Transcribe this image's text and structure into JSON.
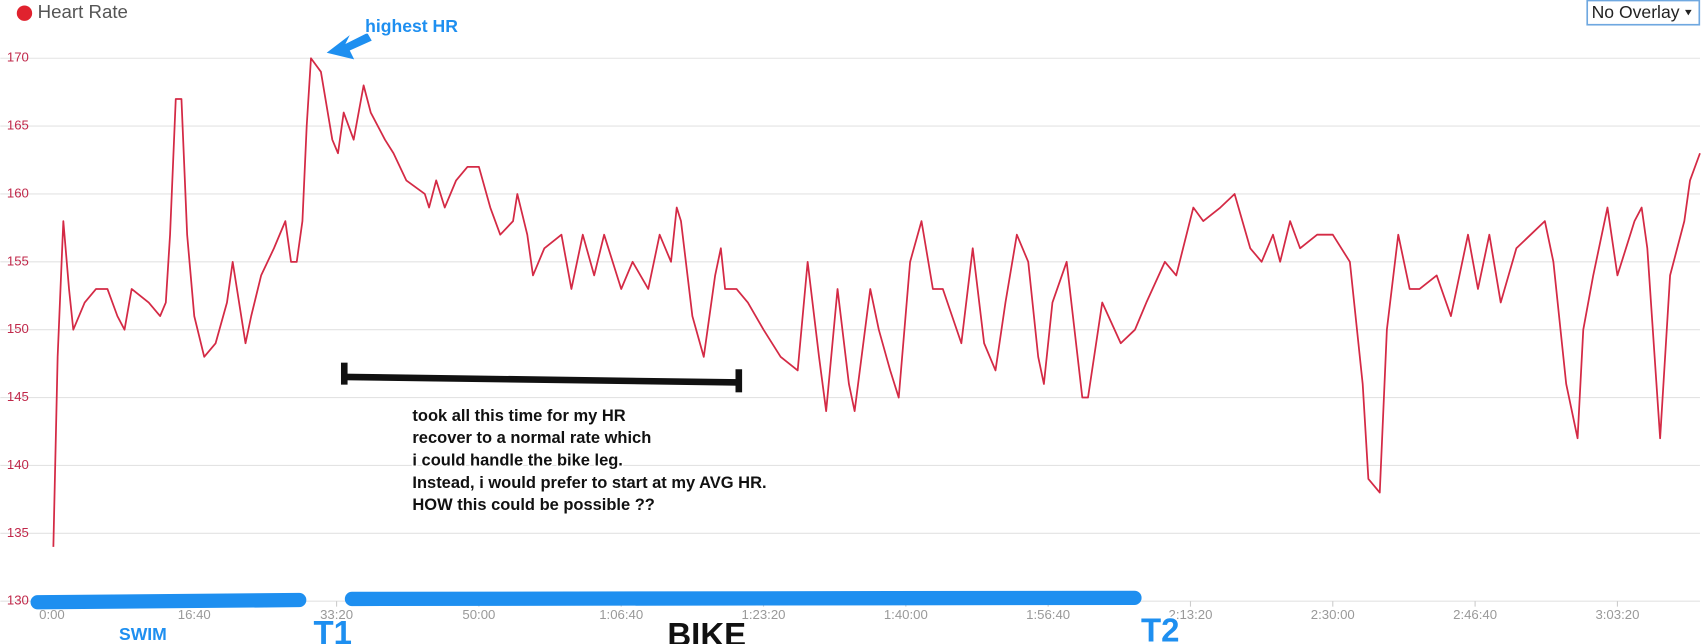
{
  "chart_data": {
    "type": "line",
    "legend": "top-left",
    "grid": true,
    "overlay_button": "No Overlay",
    "x": [
      10,
      40,
      80,
      120,
      150,
      230,
      310,
      390,
      460,
      510,
      560,
      680,
      760,
      800,
      830,
      870,
      910,
      950,
      1000,
      1070,
      1150,
      1230,
      1270,
      1360,
      1400,
      1470,
      1560,
      1640,
      1680,
      1720,
      1760,
      1790,
      1820,
      1890,
      1970,
      2010,
      2050,
      2120,
      2190,
      2240,
      2340,
      2400,
      2490,
      2620,
      2650,
      2700,
      2760,
      2840,
      2920,
      3000,
      3080,
      3150,
      3240,
      3270,
      3340,
      3380,
      3460,
      3580,
      3650,
      3730,
      3810,
      3880,
      4000,
      4080,
      4190,
      4270,
      4350,
      4390,
      4420,
      4500,
      4580,
      4660,
      4700,
      4730,
      4810,
      4890,
      5000,
      5120,
      5240,
      5310,
      5390,
      5440,
      5520,
      5600,
      5640,
      5750,
      5810,
      5890,
      5950,
      6030,
      6110,
      6190,
      6260,
      6390,
      6470,
      6550,
      6630,
      6700,
      6780,
      6860,
      6930,
      6970,
      7030,
      7130,
      7240,
      7280,
      7380,
      7510,
      7610,
      7690,
      7820,
      7900,
      8020,
      8090,
      8210,
      8310,
      8420,
      8500,
      8580,
      8630,
      8700,
      8770,
      8890,
      9000,
      9120,
      9210,
      9250,
      9330,
      9380,
      9460,
      9540,
      9610,
      9730,
      9830,
      9950,
      10020,
      10100,
      10180,
      10290,
      10390,
      10490,
      10550,
      10640,
      10720,
      10760,
      10830,
      10930,
      11000,
      11120,
      11170,
      11210,
      11300,
      11370,
      11470,
      11510,
      11580
    ],
    "series": [
      {
        "name": "Heart Rate",
        "color": "#d42a45",
        "values": [
          134,
          148,
          158,
          153,
          150,
          152,
          153,
          153,
          151,
          150,
          153,
          152,
          151,
          152,
          157,
          167,
          167,
          157,
          151,
          148,
          149,
          152,
          155,
          149,
          151,
          154,
          156,
          158,
          155,
          155,
          158,
          165,
          170,
          169,
          164,
          163,
          166,
          164,
          168,
          166,
          164,
          163,
          161,
          160,
          159,
          161,
          159,
          161,
          162,
          162,
          159,
          157,
          158,
          160,
          157,
          154,
          156,
          157,
          153,
          157,
          154,
          157,
          153,
          155,
          153,
          157,
          155,
          159,
          158,
          151,
          148,
          154,
          156,
          153,
          153,
          152,
          150,
          148,
          147,
          155,
          148,
          144,
          153,
          146,
          144,
          153,
          150,
          147,
          145,
          155,
          158,
          153,
          153,
          149,
          156,
          149,
          147,
          152,
          157,
          155,
          148,
          146,
          152,
          155,
          145,
          145,
          152,
          149,
          150,
          152,
          155,
          154,
          159,
          158,
          159,
          160,
          156,
          155,
          157,
          155,
          158,
          156,
          157,
          157,
          155,
          146,
          139,
          138,
          150,
          157,
          153,
          153,
          154,
          151,
          157,
          153,
          157,
          152,
          156,
          157,
          158,
          155,
          146,
          142,
          150,
          154,
          159,
          154,
          158,
          159,
          156,
          142,
          154,
          158,
          161,
          163
        ]
      }
    ],
    "xlim": [
      0,
      11580
    ],
    "xticks": [
      {
        "value": 0,
        "label": "0:00"
      },
      {
        "value": 1000,
        "label": "16:40"
      },
      {
        "value": 2000,
        "label": "33:20"
      },
      {
        "value": 3000,
        "label": "50:00"
      },
      {
        "value": 4000,
        "label": "1:06:40"
      },
      {
        "value": 5000,
        "label": "1:23:20"
      },
      {
        "value": 6000,
        "label": "1:40:00"
      },
      {
        "value": 7000,
        "label": "1:56:40"
      },
      {
        "value": 8000,
        "label": "2:13:20"
      },
      {
        "value": 9000,
        "label": "2:30:00"
      },
      {
        "value": 10000,
        "label": "2:46:40"
      },
      {
        "value": 11000,
        "label": "3:03:20"
      }
    ],
    "ylim": [
      130,
      170
    ],
    "yticks": [
      130,
      135,
      140,
      145,
      150,
      155,
      160,
      165,
      170
    ],
    "annotations": {
      "highest": "highest HR",
      "note": [
        "took all this time for my HR",
        "recover to a normal rate which",
        "i could handle the bike leg.",
        "Instead, i would prefer to start at my AVG HR.",
        "HOW this could  be possible ??"
      ],
      "swim": "SWIM",
      "t1": "T1",
      "bike": "BIKE",
      "t2": "T2"
    }
  }
}
